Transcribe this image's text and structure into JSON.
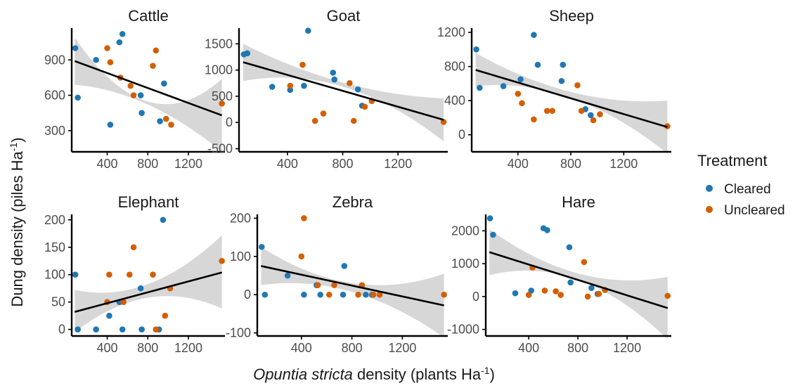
{
  "colors": {
    "Cleared": "#1f77b4",
    "Uncleared": "#d55e00",
    "band": "#bdbdbd",
    "line": "#000000"
  },
  "legend": {
    "title": "Treatment",
    "items": [
      {
        "label": "Cleared",
        "color": "#1f77b4"
      },
      {
        "label": "Uncleared",
        "color": "#d55e00"
      }
    ],
    "placement": "right"
  },
  "axes": {
    "xlabel_italic": "Opuntia stricta",
    "xlabel_rest": " density (plants Ha",
    "xlabel_sup": "-1",
    "xlabel_close": ")",
    "ylabel_main": "Dung density (piles Ha",
    "ylabel_sup": "-1",
    "ylabel_close": ")"
  },
  "chart_data": [
    {
      "type": "scatter",
      "title": "Cattle",
      "xlim": [
        50,
        1560
      ],
      "ylim": [
        120,
        1170
      ],
      "xticks": [
        400,
        800,
        1200
      ],
      "yticks": [
        300,
        600,
        900
      ],
      "fit": {
        "x": [
          80,
          1530
        ],
        "y": [
          890,
          430
        ]
      },
      "band": {
        "upper": [
          1090,
          545,
          740
        ],
        "lower": [
          690,
          520,
          120
        ]
      },
      "points": [
        {
          "x": 85,
          "y": 1000,
          "g": "Cleared"
        },
        {
          "x": 110,
          "y": 580,
          "g": "Cleared"
        },
        {
          "x": 290,
          "y": 900,
          "g": "Cleared"
        },
        {
          "x": 430,
          "y": 350,
          "g": "Cleared"
        },
        {
          "x": 520,
          "y": 1050,
          "g": "Cleared"
        },
        {
          "x": 550,
          "y": 1120,
          "g": "Cleared"
        },
        {
          "x": 730,
          "y": 600,
          "g": "Cleared"
        },
        {
          "x": 740,
          "y": 450,
          "g": "Cleared"
        },
        {
          "x": 920,
          "y": 380,
          "g": "Cleared"
        },
        {
          "x": 960,
          "y": 700,
          "g": "Cleared"
        },
        {
          "x": 400,
          "y": 1000,
          "g": "Uncleared"
        },
        {
          "x": 430,
          "y": 880,
          "g": "Uncleared"
        },
        {
          "x": 530,
          "y": 750,
          "g": "Uncleared"
        },
        {
          "x": 630,
          "y": 680,
          "g": "Uncleared"
        },
        {
          "x": 660,
          "y": 600,
          "g": "Uncleared"
        },
        {
          "x": 850,
          "y": 850,
          "g": "Uncleared"
        },
        {
          "x": 880,
          "y": 980,
          "g": "Uncleared"
        },
        {
          "x": 980,
          "y": 400,
          "g": "Uncleared"
        },
        {
          "x": 1030,
          "y": 350,
          "g": "Uncleared"
        },
        {
          "x": 1530,
          "y": 530,
          "g": "Uncleared"
        }
      ]
    },
    {
      "type": "scatter",
      "title": "Goat",
      "xlim": [
        50,
        1560
      ],
      "ylim": [
        -560,
        1800
      ],
      "xticks": [
        400,
        800,
        1200
      ],
      "yticks": [
        -500,
        0,
        500,
        1000,
        1500
      ],
      "fit": {
        "x": [
          80,
          1530
        ],
        "y": [
          1150,
          50
        ]
      },
      "band": {
        "upper": [
          1500,
          760,
          460
        ],
        "lower": [
          790,
          680,
          -360
        ]
      },
      "points": [
        {
          "x": 85,
          "y": 1300,
          "g": "Cleared"
        },
        {
          "x": 110,
          "y": 1320,
          "g": "Cleared"
        },
        {
          "x": 290,
          "y": 680,
          "g": "Cleared"
        },
        {
          "x": 420,
          "y": 620,
          "g": "Cleared"
        },
        {
          "x": 520,
          "y": 700,
          "g": "Cleared"
        },
        {
          "x": 550,
          "y": 1750,
          "g": "Cleared"
        },
        {
          "x": 730,
          "y": 950,
          "g": "Cleared"
        },
        {
          "x": 740,
          "y": 820,
          "g": "Cleared"
        },
        {
          "x": 910,
          "y": 630,
          "g": "Cleared"
        },
        {
          "x": 940,
          "y": 320,
          "g": "Cleared"
        },
        {
          "x": 420,
          "y": 700,
          "g": "Uncleared"
        },
        {
          "x": 510,
          "y": 1100,
          "g": "Uncleared"
        },
        {
          "x": 600,
          "y": 30,
          "g": "Uncleared"
        },
        {
          "x": 660,
          "y": 170,
          "g": "Uncleared"
        },
        {
          "x": 850,
          "y": 750,
          "g": "Uncleared"
        },
        {
          "x": 880,
          "y": 30,
          "g": "Uncleared"
        },
        {
          "x": 960,
          "y": 300,
          "g": "Uncleared"
        },
        {
          "x": 1010,
          "y": 410,
          "g": "Uncleared"
        },
        {
          "x": 1530,
          "y": 10,
          "g": "Uncleared"
        }
      ]
    },
    {
      "type": "scatter",
      "title": "Sheep",
      "xlim": [
        50,
        1560
      ],
      "ylim": [
        -200,
        1250
      ],
      "xticks": [
        400,
        800,
        1200
      ],
      "yticks": [
        0,
        400,
        800,
        1200
      ],
      "fit": {
        "x": [
          80,
          1530
        ],
        "y": [
          760,
          90
        ]
      },
      "band": {
        "upper": [
          960,
          500,
          400
        ],
        "lower": [
          570,
          430,
          -220
        ]
      },
      "points": [
        {
          "x": 85,
          "y": 1000,
          "g": "Cleared"
        },
        {
          "x": 110,
          "y": 550,
          "g": "Cleared"
        },
        {
          "x": 290,
          "y": 570,
          "g": "Cleared"
        },
        {
          "x": 420,
          "y": 650,
          "g": "Cleared"
        },
        {
          "x": 520,
          "y": 1170,
          "g": "Cleared"
        },
        {
          "x": 550,
          "y": 820,
          "g": "Cleared"
        },
        {
          "x": 730,
          "y": 630,
          "g": "Cleared"
        },
        {
          "x": 740,
          "y": 820,
          "g": "Cleared"
        },
        {
          "x": 910,
          "y": 300,
          "g": "Cleared"
        },
        {
          "x": 950,
          "y": 230,
          "g": "Cleared"
        },
        {
          "x": 400,
          "y": 480,
          "g": "Uncleared"
        },
        {
          "x": 430,
          "y": 370,
          "g": "Uncleared"
        },
        {
          "x": 520,
          "y": 180,
          "g": "Uncleared"
        },
        {
          "x": 620,
          "y": 280,
          "g": "Uncleared"
        },
        {
          "x": 660,
          "y": 280,
          "g": "Uncleared"
        },
        {
          "x": 850,
          "y": 580,
          "g": "Uncleared"
        },
        {
          "x": 880,
          "y": 280,
          "g": "Uncleared"
        },
        {
          "x": 970,
          "y": 170,
          "g": "Uncleared"
        },
        {
          "x": 1020,
          "y": 240,
          "g": "Uncleared"
        },
        {
          "x": 1530,
          "y": 100,
          "g": "Uncleared"
        }
      ]
    },
    {
      "type": "scatter",
      "title": "Elephant",
      "xlim": [
        50,
        1560
      ],
      "ylim": [
        -12,
        210
      ],
      "xticks": [
        400,
        800,
        1200
      ],
      "yticks": [
        0,
        50,
        100,
        150,
        200
      ],
      "fit": {
        "x": [
          80,
          1530
        ],
        "y": [
          32,
          104
        ]
      },
      "band": {
        "upper": [
          72,
          83,
          172
        ],
        "lower": [
          -5,
          58,
          38
        ]
      },
      "points": [
        {
          "x": 85,
          "y": 100,
          "g": "Cleared"
        },
        {
          "x": 110,
          "y": 0,
          "g": "Cleared"
        },
        {
          "x": 290,
          "y": 0,
          "g": "Cleared"
        },
        {
          "x": 420,
          "y": 25,
          "g": "Cleared"
        },
        {
          "x": 520,
          "y": 50,
          "g": "Cleared"
        },
        {
          "x": 550,
          "y": 0,
          "g": "Cleared"
        },
        {
          "x": 730,
          "y": 75,
          "g": "Cleared"
        },
        {
          "x": 740,
          "y": 0,
          "g": "Cleared"
        },
        {
          "x": 910,
          "y": 0,
          "g": "Cleared"
        },
        {
          "x": 950,
          "y": 200,
          "g": "Cleared"
        },
        {
          "x": 400,
          "y": 50,
          "g": "Uncleared"
        },
        {
          "x": 420,
          "y": 100,
          "g": "Uncleared"
        },
        {
          "x": 560,
          "y": 50,
          "g": "Uncleared"
        },
        {
          "x": 620,
          "y": 100,
          "g": "Uncleared"
        },
        {
          "x": 660,
          "y": 150,
          "g": "Uncleared"
        },
        {
          "x": 850,
          "y": 100,
          "g": "Uncleared"
        },
        {
          "x": 880,
          "y": 0,
          "g": "Uncleared"
        },
        {
          "x": 970,
          "y": 25,
          "g": "Uncleared"
        },
        {
          "x": 1020,
          "y": 75,
          "g": "Uncleared"
        },
        {
          "x": 1530,
          "y": 125,
          "g": "Uncleared"
        }
      ]
    },
    {
      "type": "scatter",
      "title": "Zebra",
      "xlim": [
        50,
        1560
      ],
      "ylim": [
        -108,
        210
      ],
      "xticks": [
        400,
        800,
        1200
      ],
      "yticks": [
        -100,
        0,
        100,
        200
      ],
      "fit": {
        "x": [
          80,
          1530
        ],
        "y": [
          75,
          -28
        ]
      },
      "band": {
        "upper": [
          125,
          30,
          55
        ],
        "lower": [
          25,
          7,
          -112
        ]
      },
      "points": [
        {
          "x": 85,
          "y": 125,
          "g": "Cleared"
        },
        {
          "x": 110,
          "y": 0,
          "g": "Cleared"
        },
        {
          "x": 290,
          "y": 50,
          "g": "Cleared"
        },
        {
          "x": 420,
          "y": 0,
          "g": "Cleared"
        },
        {
          "x": 520,
          "y": 25,
          "g": "Cleared"
        },
        {
          "x": 550,
          "y": 0,
          "g": "Cleared"
        },
        {
          "x": 730,
          "y": 0,
          "g": "Cleared"
        },
        {
          "x": 740,
          "y": 75,
          "g": "Cleared"
        },
        {
          "x": 910,
          "y": 0,
          "g": "Cleared"
        },
        {
          "x": 960,
          "y": 0,
          "g": "Cleared"
        },
        {
          "x": 400,
          "y": 100,
          "g": "Uncleared"
        },
        {
          "x": 420,
          "y": 200,
          "g": "Uncleared"
        },
        {
          "x": 530,
          "y": 25,
          "g": "Uncleared"
        },
        {
          "x": 620,
          "y": 0,
          "g": "Uncleared"
        },
        {
          "x": 660,
          "y": 25,
          "g": "Uncleared"
        },
        {
          "x": 850,
          "y": 0,
          "g": "Uncleared"
        },
        {
          "x": 880,
          "y": 25,
          "g": "Uncleared"
        },
        {
          "x": 970,
          "y": 0,
          "g": "Uncleared"
        },
        {
          "x": 1020,
          "y": 0,
          "g": "Uncleared"
        },
        {
          "x": 1530,
          "y": 0,
          "g": "Uncleared"
        }
      ]
    },
    {
      "type": "scatter",
      "title": "Hare",
      "xlim": [
        50,
        1560
      ],
      "ylim": [
        -1200,
        2500
      ],
      "xticks": [
        400,
        800,
        1200
      ],
      "yticks": [
        -1000,
        0,
        1000,
        2000
      ],
      "fit": {
        "x": [
          80,
          1530
        ],
        "y": [
          1350,
          -350
        ]
      },
      "band": {
        "upper": [
          2050,
          700,
          600
        ],
        "lower": [
          650,
          500,
          -1300
        ]
      },
      "points": [
        {
          "x": 85,
          "y": 2380,
          "g": "Cleared"
        },
        {
          "x": 110,
          "y": 1880,
          "g": "Cleared"
        },
        {
          "x": 290,
          "y": 100,
          "g": "Cleared"
        },
        {
          "x": 420,
          "y": 180,
          "g": "Cleared"
        },
        {
          "x": 520,
          "y": 2080,
          "g": "Cleared"
        },
        {
          "x": 550,
          "y": 2020,
          "g": "Cleared"
        },
        {
          "x": 730,
          "y": 1500,
          "g": "Cleared"
        },
        {
          "x": 740,
          "y": 430,
          "g": "Cleared"
        },
        {
          "x": 910,
          "y": 260,
          "g": "Cleared"
        },
        {
          "x": 960,
          "y": 80,
          "g": "Cleared"
        },
        {
          "x": 400,
          "y": 50,
          "g": "Uncleared"
        },
        {
          "x": 430,
          "y": 880,
          "g": "Uncleared"
        },
        {
          "x": 530,
          "y": 180,
          "g": "Uncleared"
        },
        {
          "x": 620,
          "y": 160,
          "g": "Uncleared"
        },
        {
          "x": 660,
          "y": 50,
          "g": "Uncleared"
        },
        {
          "x": 850,
          "y": 1050,
          "g": "Uncleared"
        },
        {
          "x": 880,
          "y": 0,
          "g": "Uncleared"
        },
        {
          "x": 970,
          "y": 80,
          "g": "Uncleared"
        },
        {
          "x": 1020,
          "y": 200,
          "g": "Uncleared"
        },
        {
          "x": 1530,
          "y": 20,
          "g": "Uncleared"
        }
      ]
    }
  ]
}
